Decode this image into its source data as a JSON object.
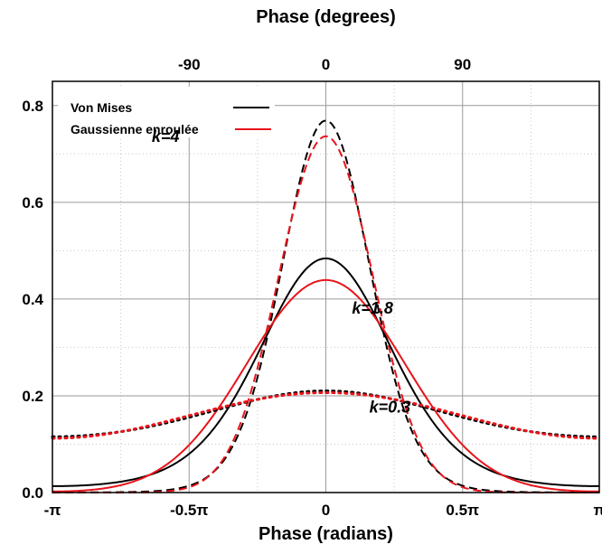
{
  "colors": {
    "von_mises": "#000000",
    "wrapped_gaussian": "#e8141b",
    "grid_major": "#9a9a9a",
    "grid_minor": "#c8c8c8"
  },
  "chart_data": {
    "type": "line",
    "title_top_axis": "Phase (degrees)",
    "xlabel": "Phase (radians)",
    "ylabel": "",
    "xlim": [
      -3.14159,
      3.14159
    ],
    "ylim": [
      0,
      0.85
    ],
    "x_ticks_bottom": [
      {
        "value": -3.14159,
        "label": "-π"
      },
      {
        "value": -1.5708,
        "label": "-0.5π"
      },
      {
        "value": 0,
        "label": "0"
      },
      {
        "value": 1.5708,
        "label": "0.5π"
      },
      {
        "value": 3.14159,
        "label": "π"
      }
    ],
    "x_ticks_top": [
      {
        "value": -1.5708,
        "label": "-90"
      },
      {
        "value": 0,
        "label": "0"
      },
      {
        "value": 1.5708,
        "label": "90"
      }
    ],
    "y_ticks": [
      {
        "value": 0,
        "label": "0.0"
      },
      {
        "value": 0.2,
        "label": "0.2"
      },
      {
        "value": 0.4,
        "label": "0.4"
      },
      {
        "value": 0.6,
        "label": "0.6"
      },
      {
        "value": 0.8,
        "label": "0.8"
      }
    ],
    "grid": true,
    "legend": {
      "position": "top-left",
      "entries": [
        {
          "name": "Von Mises",
          "color": "#000000"
        },
        {
          "name": "Gaussienne enroulée",
          "color": "#e8141b"
        }
      ]
    },
    "series": [
      {
        "name": "Von Mises",
        "kappa": 4,
        "style": "dashed",
        "color": "#000000",
        "peak": 0.764
      },
      {
        "name": "Gaussienne enroulée",
        "kappa": 4,
        "style": "dashed",
        "color": "#e8141b",
        "peak": 0.736
      },
      {
        "name": "Von Mises",
        "kappa": 1.8,
        "style": "solid",
        "color": "#000000",
        "peak": 0.483
      },
      {
        "name": "Gaussienne enroulée",
        "kappa": 1.8,
        "style": "solid",
        "color": "#e8141b",
        "peak": 0.44
      },
      {
        "name": "Von Mises",
        "kappa": 0.3,
        "style": "dotted",
        "color": "#000000",
        "peak": 0.207
      },
      {
        "name": "Gaussienne enroulée",
        "kappa": 0.3,
        "style": "dotted",
        "color": "#e8141b",
        "peak": 0.207
      }
    ],
    "annotations": [
      {
        "text": "k=4",
        "x": -2.0,
        "y": 0.725
      },
      {
        "text": "k=1.8",
        "x": 0.3,
        "y": 0.37
      },
      {
        "text": "k=0.3",
        "x": 0.5,
        "y": 0.165
      }
    ]
  }
}
